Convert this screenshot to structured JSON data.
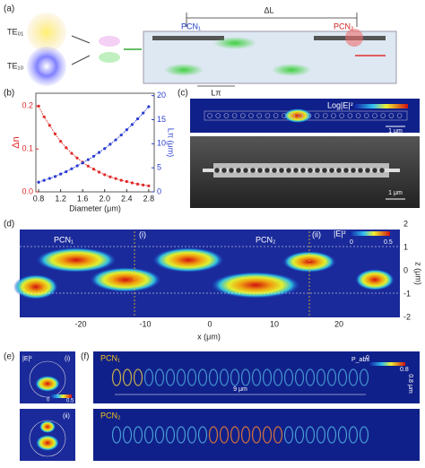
{
  "chart_data": {
    "type": "line",
    "x": [
      0.8,
      0.9,
      1.0,
      1.1,
      1.2,
      1.3,
      1.4,
      1.5,
      1.6,
      1.7,
      1.8,
      1.9,
      2.0,
      2.1,
      2.2,
      2.3,
      2.4,
      2.5,
      2.6,
      2.7,
      2.8
    ],
    "xlim": [
      0.75,
      2.9
    ],
    "xticks": [
      0.8,
      1.2,
      1.6,
      {
        "value": 2,
        "label": "2.0"
      },
      2.4,
      2.8
    ],
    "ylim": [
      0,
      0.23
    ],
    "yticks": [
      {
        "value": 0,
        "label": "0.0"
      },
      0.1,
      0.2
    ],
    "y2lim": [
      0,
      20.5
    ],
    "y2ticks": [
      0,
      5,
      10,
      15,
      20
    ],
    "xlabel": "Diameter (μm)",
    "ylabel": "Δn",
    "y2label": "Lπ (μm)",
    "series": [
      {
        "color": "#e02a2a",
        "values": [
          0.2,
          0.175,
          0.155,
          0.135,
          0.118,
          0.103,
          0.09,
          0.079,
          0.069,
          0.06,
          0.053,
          0.046,
          0.04,
          0.035,
          0.031,
          0.027,
          0.024,
          0.021,
          0.018,
          0.016,
          0.014
        ]
      },
      {
        "color": "#2a3cd0",
        "axis": "y2",
        "values": [
          2.0,
          2.4,
          2.8,
          3.2,
          3.7,
          4.2,
          4.8,
          5.4,
          6.0,
          6.7,
          7.4,
          8.2,
          9.0,
          9.9,
          10.8,
          11.8,
          12.9,
          14.0,
          15.2,
          16.4,
          17.7
        ]
      }
    ]
  },
  "panels": {
    "a": {
      "label": "(a)",
      "te01": "TE₀₁",
      "te10": "TE₁₀",
      "pcn1": "PCN₁",
      "pcn2": "PCN₂",
      "delta_l": "ΔL",
      "l_pi": "Lπ"
    },
    "b": {
      "label": "(b)"
    },
    "c": {
      "label": "(c)",
      "colorbar": "Log|E|²",
      "scale_top": "1 μm",
      "scale_bottom": "1 μm"
    },
    "d": {
      "label": "(d)",
      "pcn1": "PCN₁",
      "pcn2": "PCN₂",
      "marker_i": "(i)",
      "marker_ii": "(ii)",
      "colorbar": "|E|²",
      "cmin": "0",
      "cmax": "0.5",
      "xlabel": "x (μm)",
      "xticks": [
        "-20",
        "-10",
        "0",
        "10",
        "20"
      ],
      "ylabel": "z (μm)",
      "yticks": [
        "2",
        "1",
        "0",
        "-1",
        "-2"
      ]
    },
    "e": {
      "label": "(e)",
      "colorbar": "|E|²",
      "cmin": "0",
      "cmax": "0.5",
      "top": "(i)",
      "bottom": "(ii)"
    },
    "f": {
      "label": "(f)",
      "top": "PCN₁",
      "bottom": "PCN₂",
      "colorbar": "P_abs",
      "cmin": "0",
      "cmax": "0.8",
      "height": "0.8 μm",
      "length": "9 μm"
    }
  }
}
